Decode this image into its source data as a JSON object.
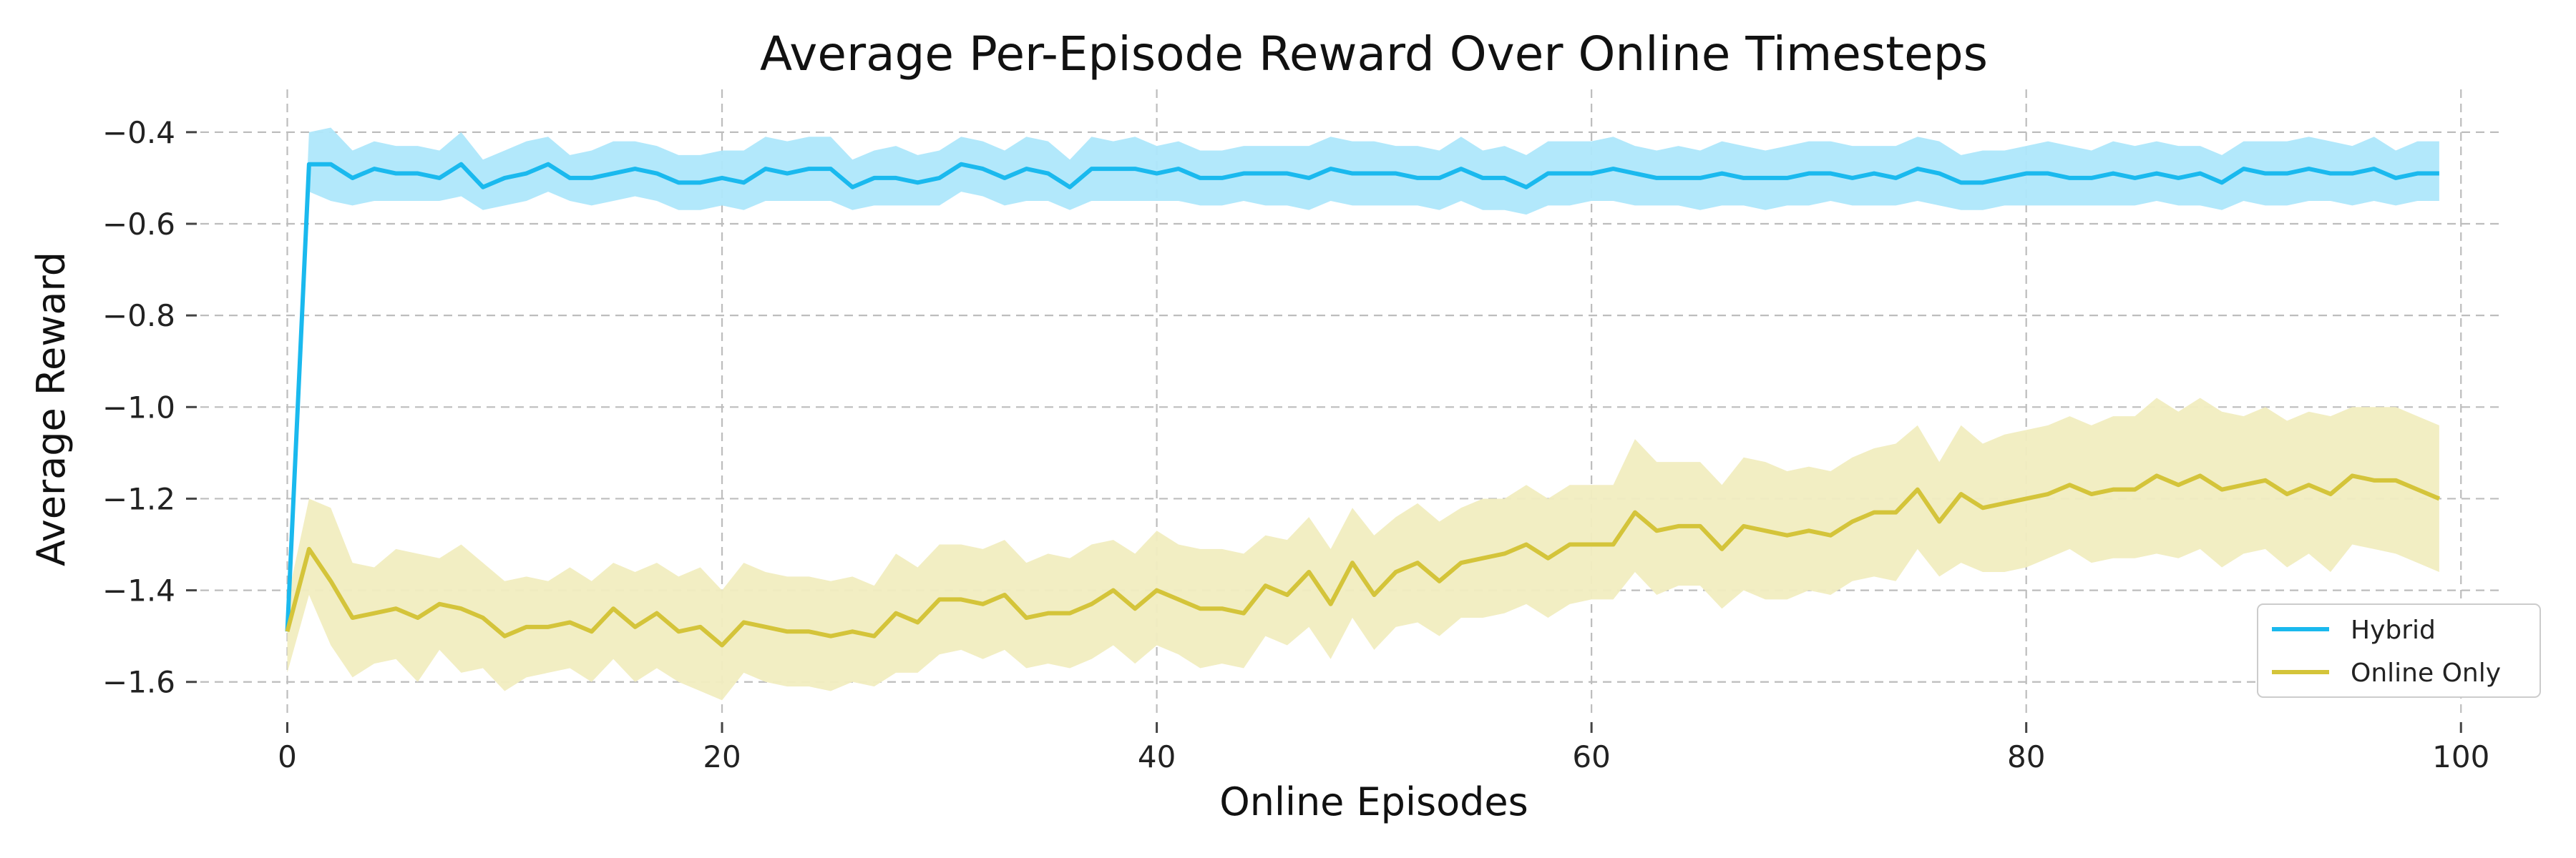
{
  "chart_data": {
    "type": "line",
    "title": "Average Per-Episode Reward Over Online Timesteps",
    "xlabel": "Online Episodes",
    "ylabel": "Average Reward",
    "xlim": [
      -4,
      102
    ],
    "ylim": [
      -1.68,
      -0.33
    ],
    "xticks": [
      0,
      20,
      40,
      60,
      80,
      100
    ],
    "yticks": [
      -0.4,
      -0.6,
      -0.8,
      -1.0,
      -1.2,
      -1.4,
      -1.6
    ],
    "xtick_labels": [
      "0",
      "20",
      "40",
      "60",
      "80",
      "100"
    ],
    "ytick_labels": [
      "−0.4",
      "−0.6",
      "−0.8",
      "−1.0",
      "−1.2",
      "−1.4",
      "−1.6"
    ],
    "grid": true,
    "legend_position": "bottom-right",
    "x": [
      0,
      1,
      2,
      3,
      4,
      5,
      6,
      7,
      8,
      9,
      10,
      11,
      12,
      13,
      14,
      15,
      16,
      17,
      18,
      19,
      20,
      21,
      22,
      23,
      24,
      25,
      26,
      27,
      28,
      29,
      30,
      31,
      32,
      33,
      34,
      35,
      36,
      37,
      38,
      39,
      40,
      41,
      42,
      43,
      44,
      45,
      46,
      47,
      48,
      49,
      50,
      51,
      52,
      53,
      54,
      55,
      56,
      57,
      58,
      59,
      60,
      61,
      62,
      63,
      64,
      65,
      66,
      67,
      68,
      69,
      70,
      71,
      72,
      73,
      74,
      75,
      76,
      77,
      78,
      79,
      80,
      81,
      82,
      83,
      84,
      85,
      86,
      87,
      88,
      89,
      90,
      91,
      92,
      93,
      94,
      95,
      96,
      97,
      98,
      99
    ],
    "series": [
      {
        "name": "Hybrid",
        "color": "#1ab9ee",
        "band_color": "#aee7fb",
        "values": [
          -1.49,
          -0.47,
          -0.47,
          -0.5,
          -0.48,
          -0.49,
          -0.49,
          -0.5,
          -0.47,
          -0.52,
          -0.5,
          -0.49,
          -0.47,
          -0.5,
          -0.5,
          -0.49,
          -0.48,
          -0.49,
          -0.51,
          -0.51,
          -0.5,
          -0.51,
          -0.48,
          -0.49,
          -0.48,
          -0.48,
          -0.52,
          -0.5,
          -0.5,
          -0.51,
          -0.5,
          -0.47,
          -0.48,
          -0.5,
          -0.48,
          -0.49,
          -0.52,
          -0.48,
          -0.48,
          -0.48,
          -0.49,
          -0.48,
          -0.5,
          -0.5,
          -0.49,
          -0.49,
          -0.49,
          -0.5,
          -0.48,
          -0.49,
          -0.49,
          -0.49,
          -0.5,
          -0.5,
          -0.48,
          -0.5,
          -0.5,
          -0.52,
          -0.49,
          -0.49,
          -0.49,
          -0.48,
          -0.49,
          -0.5,
          -0.5,
          -0.5,
          -0.49,
          -0.5,
          -0.5,
          -0.5,
          -0.49,
          -0.49,
          -0.5,
          -0.49,
          -0.5,
          -0.48,
          -0.49,
          -0.51,
          -0.51,
          -0.5,
          -0.49,
          -0.49,
          -0.5,
          -0.5,
          -0.49,
          -0.5,
          -0.49,
          -0.5,
          -0.49,
          -0.51,
          -0.48,
          -0.49,
          -0.49,
          -0.48,
          -0.49,
          -0.49,
          -0.48,
          -0.5,
          -0.49,
          -0.49
        ],
        "lower": [
          -1.49,
          -0.53,
          -0.55,
          -0.56,
          -0.55,
          -0.55,
          -0.55,
          -0.55,
          -0.54,
          -0.57,
          -0.56,
          -0.55,
          -0.53,
          -0.55,
          -0.56,
          -0.55,
          -0.54,
          -0.55,
          -0.57,
          -0.57,
          -0.56,
          -0.57,
          -0.55,
          -0.55,
          -0.55,
          -0.55,
          -0.57,
          -0.56,
          -0.56,
          -0.56,
          -0.56,
          -0.53,
          -0.54,
          -0.56,
          -0.55,
          -0.55,
          -0.57,
          -0.55,
          -0.55,
          -0.55,
          -0.55,
          -0.55,
          -0.56,
          -0.56,
          -0.55,
          -0.56,
          -0.56,
          -0.57,
          -0.55,
          -0.56,
          -0.56,
          -0.56,
          -0.56,
          -0.57,
          -0.55,
          -0.57,
          -0.57,
          -0.58,
          -0.56,
          -0.56,
          -0.55,
          -0.55,
          -0.56,
          -0.56,
          -0.56,
          -0.57,
          -0.56,
          -0.56,
          -0.57,
          -0.56,
          -0.56,
          -0.55,
          -0.56,
          -0.56,
          -0.56,
          -0.55,
          -0.56,
          -0.57,
          -0.57,
          -0.56,
          -0.56,
          -0.56,
          -0.56,
          -0.56,
          -0.56,
          -0.56,
          -0.55,
          -0.56,
          -0.56,
          -0.57,
          -0.55,
          -0.56,
          -0.56,
          -0.55,
          -0.55,
          -0.56,
          -0.55,
          -0.56,
          -0.55,
          -0.55
        ],
        "upper": [
          -1.49,
          -0.4,
          -0.39,
          -0.44,
          -0.42,
          -0.43,
          -0.43,
          -0.44,
          -0.4,
          -0.46,
          -0.44,
          -0.42,
          -0.41,
          -0.45,
          -0.44,
          -0.42,
          -0.42,
          -0.43,
          -0.45,
          -0.45,
          -0.44,
          -0.44,
          -0.41,
          -0.42,
          -0.41,
          -0.41,
          -0.46,
          -0.44,
          -0.43,
          -0.45,
          -0.44,
          -0.41,
          -0.42,
          -0.44,
          -0.41,
          -0.42,
          -0.46,
          -0.41,
          -0.42,
          -0.41,
          -0.43,
          -0.42,
          -0.44,
          -0.44,
          -0.43,
          -0.43,
          -0.43,
          -0.43,
          -0.41,
          -0.42,
          -0.42,
          -0.43,
          -0.43,
          -0.44,
          -0.41,
          -0.44,
          -0.43,
          -0.45,
          -0.42,
          -0.42,
          -0.42,
          -0.41,
          -0.43,
          -0.44,
          -0.43,
          -0.44,
          -0.42,
          -0.43,
          -0.44,
          -0.43,
          -0.42,
          -0.42,
          -0.43,
          -0.43,
          -0.43,
          -0.41,
          -0.42,
          -0.45,
          -0.44,
          -0.44,
          -0.43,
          -0.42,
          -0.43,
          -0.44,
          -0.42,
          -0.43,
          -0.42,
          -0.43,
          -0.43,
          -0.45,
          -0.42,
          -0.42,
          -0.42,
          -0.41,
          -0.42,
          -0.43,
          -0.41,
          -0.44,
          -0.42,
          -0.42
        ]
      },
      {
        "name": "Online Only",
        "color": "#d4c43a",
        "band_color": "#f1edc0",
        "values": [
          -1.49,
          -1.31,
          -1.38,
          -1.46,
          -1.45,
          -1.44,
          -1.46,
          -1.43,
          -1.44,
          -1.46,
          -1.5,
          -1.48,
          -1.48,
          -1.47,
          -1.49,
          -1.44,
          -1.48,
          -1.45,
          -1.49,
          -1.48,
          -1.52,
          -1.47,
          -1.48,
          -1.49,
          -1.49,
          -1.5,
          -1.49,
          -1.5,
          -1.45,
          -1.47,
          -1.42,
          -1.42,
          -1.43,
          -1.41,
          -1.46,
          -1.45,
          -1.45,
          -1.43,
          -1.4,
          -1.44,
          -1.4,
          -1.42,
          -1.44,
          -1.44,
          -1.45,
          -1.39,
          -1.41,
          -1.36,
          -1.43,
          -1.34,
          -1.41,
          -1.36,
          -1.34,
          -1.38,
          -1.34,
          -1.33,
          -1.32,
          -1.3,
          -1.33,
          -1.3,
          -1.3,
          -1.3,
          -1.23,
          -1.27,
          -1.26,
          -1.26,
          -1.31,
          -1.26,
          -1.27,
          -1.28,
          -1.27,
          -1.28,
          -1.25,
          -1.23,
          -1.23,
          -1.18,
          -1.25,
          -1.19,
          -1.22,
          -1.21,
          -1.2,
          -1.19,
          -1.17,
          -1.19,
          -1.18,
          -1.18,
          -1.15,
          -1.17,
          -1.15,
          -1.18,
          -1.17,
          -1.16,
          -1.19,
          -1.17,
          -1.19,
          -1.15,
          -1.16,
          -1.16,
          -1.18,
          -1.2
        ],
        "lower": [
          -1.58,
          -1.41,
          -1.52,
          -1.59,
          -1.56,
          -1.55,
          -1.6,
          -1.53,
          -1.58,
          -1.57,
          -1.62,
          -1.59,
          -1.58,
          -1.57,
          -1.6,
          -1.55,
          -1.6,
          -1.57,
          -1.6,
          -1.62,
          -1.64,
          -1.58,
          -1.6,
          -1.61,
          -1.61,
          -1.62,
          -1.6,
          -1.61,
          -1.58,
          -1.58,
          -1.54,
          -1.53,
          -1.55,
          -1.53,
          -1.57,
          -1.56,
          -1.57,
          -1.55,
          -1.52,
          -1.56,
          -1.52,
          -1.54,
          -1.57,
          -1.56,
          -1.57,
          -1.5,
          -1.52,
          -1.48,
          -1.55,
          -1.46,
          -1.53,
          -1.48,
          -1.47,
          -1.5,
          -1.46,
          -1.46,
          -1.45,
          -1.43,
          -1.46,
          -1.43,
          -1.42,
          -1.42,
          -1.36,
          -1.41,
          -1.39,
          -1.39,
          -1.44,
          -1.4,
          -1.42,
          -1.42,
          -1.4,
          -1.41,
          -1.38,
          -1.37,
          -1.38,
          -1.31,
          -1.37,
          -1.34,
          -1.36,
          -1.36,
          -1.35,
          -1.33,
          -1.31,
          -1.34,
          -1.33,
          -1.33,
          -1.32,
          -1.33,
          -1.31,
          -1.35,
          -1.32,
          -1.31,
          -1.35,
          -1.32,
          -1.36,
          -1.3,
          -1.31,
          -1.32,
          -1.34,
          -1.36
        ],
        "upper": [
          -1.42,
          -1.2,
          -1.22,
          -1.34,
          -1.35,
          -1.31,
          -1.32,
          -1.33,
          -1.3,
          -1.34,
          -1.38,
          -1.37,
          -1.38,
          -1.35,
          -1.38,
          -1.34,
          -1.36,
          -1.34,
          -1.37,
          -1.35,
          -1.4,
          -1.34,
          -1.36,
          -1.37,
          -1.37,
          -1.38,
          -1.37,
          -1.39,
          -1.32,
          -1.35,
          -1.3,
          -1.3,
          -1.31,
          -1.29,
          -1.34,
          -1.32,
          -1.33,
          -1.3,
          -1.29,
          -1.32,
          -1.27,
          -1.3,
          -1.31,
          -1.31,
          -1.32,
          -1.28,
          -1.29,
          -1.24,
          -1.31,
          -1.22,
          -1.28,
          -1.24,
          -1.21,
          -1.25,
          -1.22,
          -1.2,
          -1.2,
          -1.17,
          -1.2,
          -1.17,
          -1.17,
          -1.17,
          -1.07,
          -1.12,
          -1.12,
          -1.12,
          -1.17,
          -1.11,
          -1.12,
          -1.14,
          -1.13,
          -1.14,
          -1.11,
          -1.09,
          -1.08,
          -1.04,
          -1.12,
          -1.04,
          -1.08,
          -1.06,
          -1.05,
          -1.04,
          -1.02,
          -1.04,
          -1.02,
          -1.02,
          -0.98,
          -1.01,
          -0.98,
          -1.01,
          -1.02,
          -1.0,
          -1.03,
          -1.01,
          -1.02,
          -1.0,
          -1.0,
          -1.0,
          -1.02,
          -1.04
        ]
      }
    ]
  }
}
